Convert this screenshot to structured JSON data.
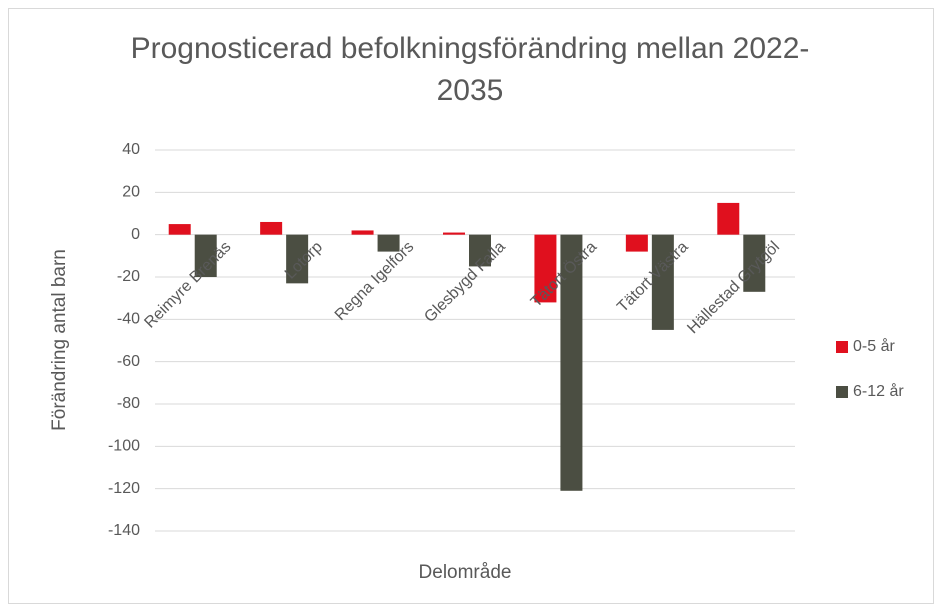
{
  "chart_data": {
    "type": "bar",
    "title": "Prognosticerad befolkningsförändring mellan 2022-2035",
    "categories": [
      "Reimyre Brenäs",
      "Lotorp",
      "Regna Igelfors",
      "Glesbygd Falla",
      "Tätort Östra",
      "Tätort Västra",
      "Hällestad Grytgöl"
    ],
    "series": [
      {
        "name": "0-5 år",
        "color": "#e0101e",
        "values": [
          5,
          6,
          2,
          1,
          -32,
          -8,
          15
        ]
      },
      {
        "name": "6-12 år",
        "color": "#4b4e42",
        "values": [
          -20,
          -23,
          -8,
          -15,
          -121,
          -45,
          -27
        ]
      }
    ],
    "ylim": [
      -140,
      40
    ],
    "yticks": [
      -140,
      -120,
      -100,
      -80,
      -60,
      -40,
      -20,
      0,
      20,
      40
    ],
    "ylabel": "Förändring antal barn",
    "xlabel": "Delområde",
    "grid": true,
    "legend": "right"
  }
}
